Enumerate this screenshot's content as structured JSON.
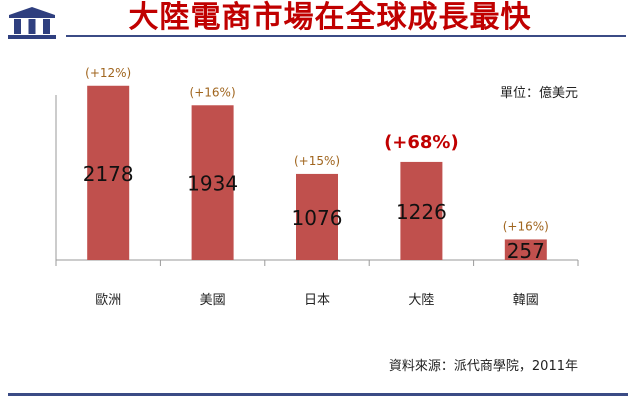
{
  "header": {
    "title": "大陸電商市場在全球成長最快",
    "logo_icon": "building-pillars-icon"
  },
  "unit_label": "單位：億美元",
  "source_label": "資料來源：派代商學院，2011年",
  "colors": {
    "bar": "#c0504d",
    "title": "#c00000",
    "growth_label": "#a0651e",
    "highlight_label": "#c00000",
    "rule": "#3b4b85"
  },
  "chart_data": {
    "type": "bar",
    "title": "大陸電商市場在全球成長最快",
    "categories": [
      "歐洲",
      "美國",
      "日本",
      "大陸",
      "韓國"
    ],
    "values": [
      2178,
      1934,
      1076,
      1226,
      257
    ],
    "value_labels": [
      "2178",
      "1934",
      "1076",
      "1226",
      "257"
    ],
    "growth_labels": [
      "(+12%)",
      "(+16%)",
      "(+15%)",
      "(+68%)",
      "(+16%)"
    ],
    "highlight_index": 3,
    "unit": "億美元",
    "ylim": [
      0,
      2500
    ],
    "grid": false,
    "legend": "none"
  }
}
